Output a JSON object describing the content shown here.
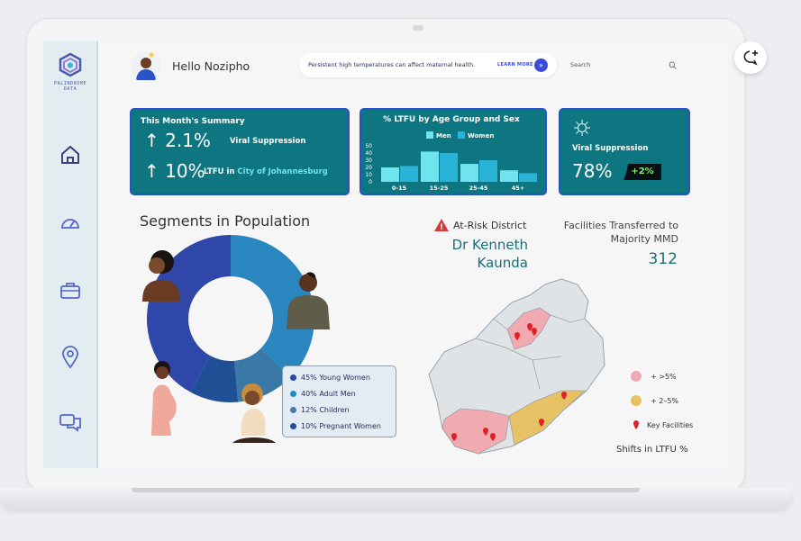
{
  "logo": {
    "line1": "PALINDROME",
    "line2": "DATA"
  },
  "sidebar": {
    "items": [
      {
        "icon": "home-icon"
      },
      {
        "icon": "speedometer-icon"
      },
      {
        "icon": "briefcase-icon"
      },
      {
        "icon": "location-pin-icon"
      },
      {
        "icon": "chat-bubbles-icon"
      }
    ]
  },
  "header": {
    "greeting": "Hello Nozipho",
    "banner_text": "Persistent high temperatures can affect maternal health.",
    "learn_more": "LEARN MORE",
    "search_placeholder": "Search"
  },
  "summary": {
    "title": "This Month's Summary",
    "viral_value": "2.1%",
    "viral_label": "Viral Suppression",
    "ltfu_value": "10%",
    "ltfu_label": "LTFU in",
    "ltfu_city": "City of Johannesburg"
  },
  "viral_card": {
    "label": "Viral Suppression",
    "value": "78%",
    "badge": "+2%"
  },
  "population": {
    "title": "Segments in Population",
    "segments": [
      {
        "label": "45% Young Women",
        "value": 45,
        "color": "#2f47a8"
      },
      {
        "label": "40% Adult Men",
        "value": 40,
        "color": "#2a86bf"
      },
      {
        "label": "12% Children",
        "value": 12,
        "color": "#3a78a8"
      },
      {
        "label": "10% Pregnant Women",
        "value": 10,
        "color": "#1f4f94"
      }
    ]
  },
  "risk": {
    "label": "At-Risk District",
    "name_line1": "Dr Kenneth",
    "name_line2": "Kaunda"
  },
  "facilities": {
    "label_line1": "Facilities Transferred to",
    "label_line2": "Majority MMD",
    "value": "312"
  },
  "map": {
    "legend": [
      {
        "label": "+ >5%",
        "color": "#f0aab0"
      },
      {
        "label": "+ 2–5%",
        "color": "#e6c265"
      },
      {
        "label": "Key Facilities",
        "color": "#e0202a"
      }
    ],
    "caption": "Shifts in LTFU %"
  },
  "chart_data": {
    "type": "bar",
    "title": "% LTFU by Age Group and Sex",
    "categories": [
      "0-15",
      "15-25",
      "25-45",
      "45+"
    ],
    "series": [
      {
        "name": "Men",
        "values": [
          20,
          42,
          25,
          16
        ],
        "color": "#6fe3ee"
      },
      {
        "name": "Women",
        "values": [
          22,
          40,
          30,
          12
        ],
        "color": "#29b3d6"
      }
    ],
    "yticks": [
      "50",
      "40",
      "30",
      "20",
      "10",
      "0"
    ],
    "ylim": [
      0,
      50
    ],
    "grid": false,
    "legend": "top"
  }
}
